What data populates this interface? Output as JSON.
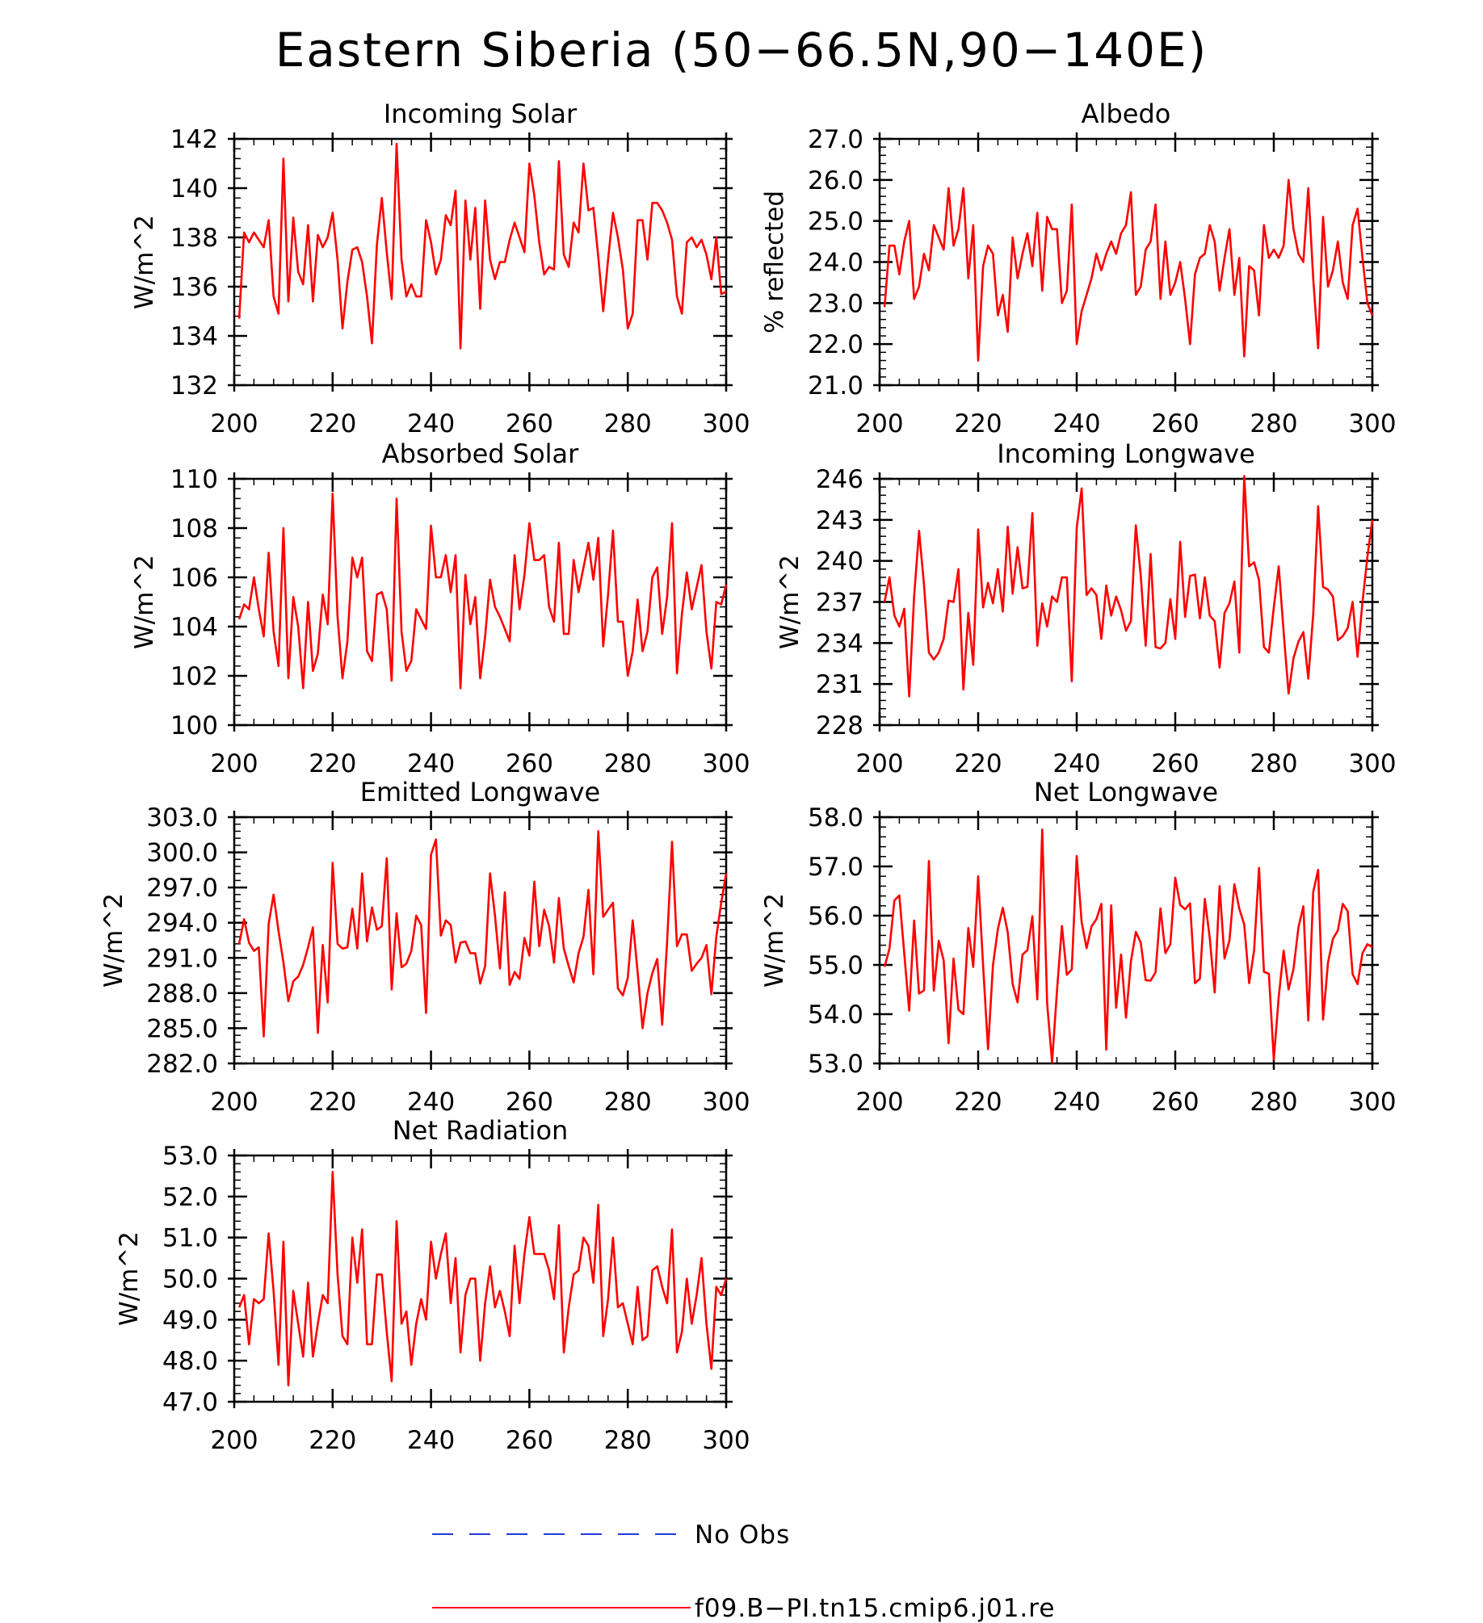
{
  "figure": {
    "title": "Eastern Siberia (50−66.5N,90−140E)",
    "legend": [
      {
        "label": "No Obs",
        "color": "#1f3bd6",
        "style": "dashed"
      },
      {
        "label": "f09.B−PI.tn15.cmip6.j01.re",
        "color": "#ff0000",
        "style": "solid"
      }
    ]
  },
  "chart_data": [
    {
      "type": "line",
      "title": "Incoming Solar",
      "ylabel": "W/m^2",
      "xlim": [
        200,
        300
      ],
      "ylim": [
        132,
        142
      ],
      "xticks": [
        "200",
        "220",
        "240",
        "260",
        "280",
        "300"
      ],
      "yticks": [
        "132",
        "134",
        "136",
        "138",
        "140",
        "142"
      ],
      "series": [
        {
          "color": "#ff0000",
          "x_start": 201,
          "values": [
            134.7,
            138.2,
            137.8,
            138.2,
            137.9,
            137.6,
            138.7,
            135.6,
            134.9,
            141.2,
            135.4,
            138.8,
            136.6,
            136.1,
            138.5,
            135.4,
            138.1,
            137.6,
            138.0,
            139.0,
            137.1,
            134.3,
            136.2,
            137.5,
            137.6,
            137.0,
            135.6,
            133.7,
            137.7,
            139.6,
            137.4,
            135.5,
            141.8,
            137.1,
            135.6,
            136.1,
            135.6,
            135.6,
            138.7,
            137.8,
            136.5,
            137.1,
            138.9,
            138.5,
            139.9,
            133.5,
            139.5,
            137.1,
            139.2,
            135.1,
            139.5,
            137.1,
            136.3,
            137.0,
            137.0,
            137.9,
            138.6,
            138.0,
            137.4,
            141.0,
            139.7,
            137.8,
            136.5,
            136.8,
            136.7,
            141.1,
            137.3,
            136.8,
            138.6,
            138.2,
            141.0,
            139.1,
            139.2,
            137.2,
            135.0,
            137.1,
            139.0,
            138.0,
            136.7,
            134.3,
            134.9,
            138.7,
            138.7,
            137.1,
            139.4,
            139.4,
            139.1,
            138.6,
            137.9,
            135.6,
            134.9,
            137.8,
            138.0,
            137.6,
            137.9,
            137.3,
            136.3,
            138.0,
            135.7,
            135.8
          ]
        }
      ]
    },
    {
      "type": "line",
      "title": "Albedo",
      "ylabel": "% reflected",
      "xlim": [
        200,
        300
      ],
      "ylim": [
        21.0,
        27.0
      ],
      "xticks": [
        "200",
        "220",
        "240",
        "260",
        "280",
        "300"
      ],
      "yticks": [
        "21.0",
        "22.0",
        "23.0",
        "24.0",
        "25.0",
        "26.0",
        "27.0"
      ],
      "series": [
        {
          "color": "#ff0000",
          "x_start": 201,
          "values": [
            22.9,
            24.4,
            24.4,
            23.7,
            24.5,
            25.0,
            23.1,
            23.4,
            24.2,
            23.8,
            24.9,
            24.6,
            24.3,
            25.8,
            24.4,
            24.8,
            25.8,
            23.6,
            24.9,
            21.6,
            23.9,
            24.4,
            24.2,
            22.7,
            23.2,
            22.3,
            24.6,
            23.6,
            24.2,
            24.7,
            23.9,
            25.2,
            23.3,
            25.1,
            24.8,
            24.8,
            23.0,
            23.3,
            25.4,
            22.0,
            22.8,
            23.2,
            23.6,
            24.2,
            23.8,
            24.2,
            24.5,
            24.2,
            24.7,
            24.9,
            25.7,
            23.2,
            23.4,
            24.3,
            24.5,
            25.4,
            23.1,
            24.5,
            23.2,
            23.5,
            24.0,
            23.1,
            22.0,
            23.7,
            24.1,
            24.2,
            24.9,
            24.5,
            23.3,
            24.1,
            24.8,
            23.2,
            24.1,
            21.7,
            23.9,
            23.8,
            22.7,
            24.9,
            24.1,
            24.3,
            24.1,
            24.4,
            26.0,
            24.8,
            24.2,
            24.0,
            25.8,
            23.6,
            21.9,
            25.1,
            23.4,
            23.8,
            24.5,
            23.5,
            23.1,
            24.9,
            25.3,
            24.1,
            23.0,
            22.7
          ]
        }
      ]
    },
    {
      "type": "line",
      "title": "Absorbed Solar",
      "ylabel": "W/m^2",
      "xlim": [
        200,
        300
      ],
      "ylim": [
        100,
        110
      ],
      "xticks": [
        "200",
        "220",
        "240",
        "260",
        "280",
        "300"
      ],
      "yticks": [
        "100",
        "102",
        "104",
        "106",
        "108",
        "110"
      ],
      "series": [
        {
          "color": "#ff0000",
          "x_start": 201,
          "values": [
            104.3,
            104.9,
            104.7,
            106.0,
            104.7,
            103.6,
            107.0,
            103.8,
            102.4,
            108.0,
            101.9,
            105.2,
            104.0,
            101.5,
            105.0,
            102.2,
            102.9,
            105.3,
            104.1,
            109.4,
            104.4,
            101.9,
            103.4,
            106.8,
            106.0,
            106.8,
            103.0,
            102.6,
            105.3,
            105.4,
            104.7,
            101.8,
            109.2,
            103.8,
            102.2,
            102.6,
            104.7,
            104.3,
            103.9,
            108.1,
            106.0,
            106.0,
            106.9,
            105.4,
            106.9,
            101.5,
            106.1,
            104.1,
            105.2,
            101.9,
            103.6,
            105.9,
            104.8,
            104.4,
            103.9,
            103.4,
            106.9,
            104.7,
            106.1,
            108.2,
            106.7,
            106.7,
            106.9,
            104.8,
            104.2,
            107.4,
            103.7,
            103.7,
            106.7,
            105.4,
            106.4,
            107.4,
            105.9,
            107.6,
            103.2,
            105.3,
            107.9,
            104.2,
            104.2,
            102.0,
            103.0,
            105.1,
            103.0,
            103.8,
            106.0,
            106.4,
            103.7,
            105.2,
            108.2,
            102.1,
            104.5,
            106.2,
            104.7,
            105.6,
            106.5,
            103.8,
            102.3,
            105.0,
            104.9,
            105.7
          ]
        }
      ]
    },
    {
      "type": "line",
      "title": "Incoming Longwave",
      "ylabel": "W/m^2",
      "xlim": [
        200,
        300
      ],
      "ylim": [
        228,
        246
      ],
      "xticks": [
        "200",
        "220",
        "240",
        "260",
        "280",
        "300"
      ],
      "yticks": [
        "228",
        "231",
        "234",
        "237",
        "240",
        "243",
        "246"
      ],
      "series": [
        {
          "color": "#ff0000",
          "x_start": 201,
          "values": [
            237.0,
            238.8,
            236.0,
            235.2,
            236.5,
            230.1,
            237.4,
            242.2,
            238.3,
            233.3,
            232.8,
            233.3,
            234.3,
            237.1,
            237.0,
            239.4,
            230.6,
            236.2,
            232.4,
            242.3,
            236.6,
            238.4,
            236.9,
            239.4,
            236.3,
            242.5,
            237.6,
            241.0,
            238.0,
            238.1,
            243.5,
            233.8,
            236.9,
            235.2,
            237.4,
            237.0,
            238.8,
            238.8,
            231.2,
            242.4,
            245.3,
            237.5,
            238.0,
            237.5,
            234.3,
            238.2,
            236.0,
            237.4,
            236.4,
            234.9,
            235.6,
            242.6,
            238.9,
            233.8,
            240.5,
            233.7,
            233.6,
            234.0,
            237.2,
            234.3,
            241.4,
            235.9,
            238.9,
            239.0,
            235.8,
            238.8,
            236.0,
            235.6,
            232.2,
            236.2,
            236.9,
            238.5,
            233.3,
            246.2,
            239.6,
            239.9,
            238.6,
            233.7,
            233.3,
            236.6,
            239.6,
            234.8,
            230.3,
            232.9,
            234.1,
            234.8,
            231.4,
            236.1,
            244.0,
            238.1,
            237.9,
            237.4,
            234.2,
            234.5,
            235.1,
            237.0,
            233.0,
            237.0,
            240.3,
            243.0
          ]
        }
      ]
    },
    {
      "type": "line",
      "title": "Emitted Longwave",
      "ylabel": "W/m^2",
      "xlim": [
        200,
        300
      ],
      "ylim": [
        282.0,
        303.0
      ],
      "xticks": [
        "200",
        "220",
        "240",
        "260",
        "280",
        "300"
      ],
      "yticks": [
        "282.0",
        "285.0",
        "288.0",
        "291.0",
        "294.0",
        "297.0",
        "300.0",
        "303.0"
      ],
      "series": [
        {
          "color": "#ff0000",
          "x_start": 201,
          "values": [
            292.2,
            294.3,
            292.3,
            291.6,
            291.9,
            284.3,
            293.9,
            296.4,
            293.3,
            290.6,
            287.3,
            289.0,
            289.4,
            290.4,
            291.9,
            293.6,
            284.6,
            292.1,
            287.2,
            299.1,
            292.2,
            291.8,
            291.9,
            295.2,
            291.8,
            298.2,
            292.4,
            295.3,
            293.4,
            293.7,
            299.5,
            288.3,
            294.8,
            290.2,
            290.5,
            291.6,
            294.6,
            293.8,
            286.3,
            299.8,
            301.1,
            292.9,
            294.2,
            293.8,
            290.6,
            292.3,
            292.4,
            291.4,
            291.4,
            288.8,
            290.3,
            298.2,
            294.6,
            290.1,
            296.6,
            288.7,
            289.8,
            289.2,
            292.7,
            291.2,
            297.5,
            292.0,
            295.1,
            293.7,
            290.6,
            296.1,
            291.8,
            290.3,
            288.9,
            291.4,
            292.8,
            296.8,
            289.6,
            301.8,
            294.5,
            295.1,
            295.7,
            288.4,
            287.8,
            289.3,
            294.2,
            289.8,
            285.0,
            288.0,
            289.7,
            290.9,
            285.3,
            292.4,
            300.9,
            292.0,
            293.0,
            293.0,
            289.9,
            290.5,
            291.0,
            292.1,
            287.9,
            292.8,
            295.7,
            298.2
          ]
        }
      ]
    },
    {
      "type": "line",
      "title": "Net Longwave",
      "ylabel": "W/m^2",
      "xlim": [
        200,
        300
      ],
      "ylim": [
        53.0,
        58.0
      ],
      "xticks": [
        "200",
        "220",
        "240",
        "260",
        "280",
        "300"
      ],
      "yticks": [
        "53.0",
        "54.0",
        "55.0",
        "56.0",
        "57.0",
        "58.0"
      ],
      "series": [
        {
          "color": "#ff0000",
          "x_start": 201,
          "values": [
            54.96,
            55.33,
            56.31,
            56.41,
            55.23,
            54.07,
            55.9,
            54.42,
            54.48,
            57.11,
            54.48,
            55.49,
            55.09,
            53.41,
            55.13,
            54.09,
            54.0,
            55.75,
            54.96,
            56.8,
            54.99,
            53.29,
            54.99,
            55.73,
            56.16,
            55.66,
            54.61,
            54.24,
            55.21,
            55.3,
            55.99,
            54.3,
            57.75,
            54.22,
            53.02,
            54.48,
            55.79,
            54.8,
            54.91,
            57.21,
            55.87,
            55.34,
            55.78,
            55.93,
            56.24,
            53.28,
            56.21,
            54.13,
            55.21,
            53.93,
            55.07,
            55.67,
            55.45,
            54.69,
            54.68,
            54.85,
            56.15,
            55.24,
            55.42,
            56.77,
            56.22,
            56.13,
            56.25,
            54.63,
            54.72,
            56.34,
            55.55,
            54.44,
            56.6,
            55.13,
            55.5,
            56.64,
            56.14,
            55.82,
            54.63,
            55.29,
            56.97,
            54.86,
            54.82,
            53.08,
            54.35,
            55.29,
            54.5,
            54.92,
            55.76,
            56.19,
            53.87,
            56.48,
            56.93,
            53.89,
            55.05,
            55.53,
            55.7,
            56.24,
            56.09,
            54.81,
            54.61,
            55.24,
            55.42,
            55.36
          ]
        }
      ]
    },
    {
      "type": "line",
      "title": "Net Radiation",
      "ylabel": "W/m^2",
      "xlim": [
        200,
        300
      ],
      "ylim": [
        47.0,
        53.0
      ],
      "xticks": [
        "200",
        "220",
        "240",
        "260",
        "280",
        "300"
      ],
      "yticks": [
        "47.0",
        "48.0",
        "49.0",
        "50.0",
        "51.0",
        "52.0",
        "53.0"
      ],
      "series": [
        {
          "color": "#ff0000",
          "x_start": 201,
          "values": [
            49.3,
            49.6,
            48.4,
            49.5,
            49.4,
            49.5,
            51.1,
            49.7,
            47.9,
            50.9,
            47.4,
            49.7,
            48.9,
            48.1,
            49.9,
            48.1,
            48.9,
            49.6,
            49.4,
            52.6,
            50.1,
            48.6,
            48.4,
            51.0,
            49.9,
            51.2,
            48.4,
            48.4,
            50.1,
            50.1,
            48.7,
            47.5,
            51.4,
            48.9,
            49.2,
            47.9,
            48.9,
            49.5,
            49.0,
            50.9,
            50.0,
            50.6,
            51.1,
            49.4,
            50.5,
            48.2,
            49.6,
            50.0,
            50.0,
            48.0,
            49.4,
            50.3,
            49.3,
            49.7,
            49.2,
            48.6,
            50.8,
            49.4,
            50.6,
            51.5,
            50.6,
            50.6,
            50.6,
            50.2,
            49.5,
            51.3,
            48.2,
            49.3,
            50.1,
            50.2,
            51.0,
            50.8,
            49.9,
            51.8,
            48.6,
            49.5,
            51.0,
            49.3,
            49.4,
            48.9,
            48.4,
            49.8,
            48.5,
            48.6,
            50.2,
            50.3,
            49.8,
            49.4,
            51.2,
            48.2,
            48.7,
            50.0,
            48.9,
            49.6,
            50.5,
            48.9,
            47.8,
            49.8,
            49.6,
            50.0
          ]
        }
      ]
    }
  ]
}
